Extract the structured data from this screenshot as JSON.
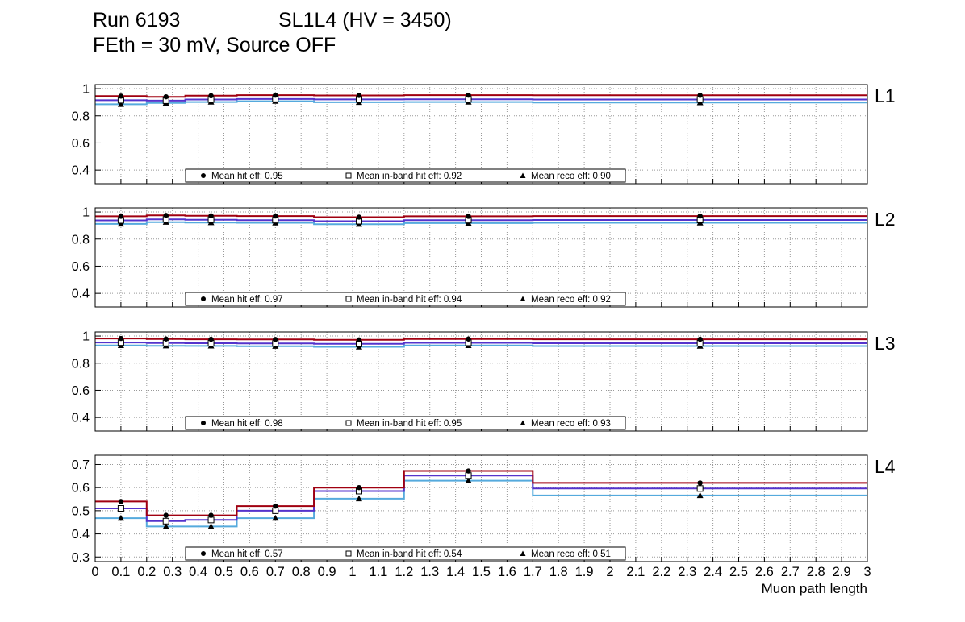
{
  "header": {
    "run": "Run 6193",
    "config": "SL1L4 (HV = 3450)",
    "subtitle": "FEth = 30 mV, Source OFF"
  },
  "chart_data": {
    "type": "line",
    "title": "Run 6193 SL1L4 (HV = 3450), FEth = 30 mV, Source OFF",
    "xlabel": "Muon path length",
    "xlim": [
      0,
      3
    ],
    "xticks": {
      "min": 0,
      "max": 3,
      "step": 0.1
    },
    "grid": "dotted",
    "bin_edges": [
      0,
      0.2,
      0.35,
      0.55,
      0.85,
      1.2,
      1.7,
      3.0
    ],
    "series_style": [
      {
        "key": "hit",
        "name": "hit eff",
        "marker": "filled-circle",
        "line_color": "#a00010",
        "marker_color": "#000000"
      },
      {
        "key": "inband",
        "name": "in-band hit eff",
        "marker": "open-square",
        "line_color": "#5533cc",
        "marker_color": "#000000"
      },
      {
        "key": "reco",
        "name": "reco eff",
        "marker": "filled-triangle",
        "line_color": "#55aadd",
        "marker_color": "#000000"
      }
    ],
    "panels": [
      {
        "label": "L1",
        "ylim": [
          0.3,
          1.03
        ],
        "yticks": [
          0.4,
          0.6,
          0.8,
          1
        ],
        "series": {
          "hit": [
            0.945,
            0.94,
            0.948,
            0.952,
            0.95,
            0.952,
            0.951
          ],
          "inband": [
            0.915,
            0.912,
            0.92,
            0.924,
            0.921,
            0.922,
            0.92
          ],
          "reco": [
            0.885,
            0.895,
            0.902,
            0.908,
            0.9,
            0.902,
            0.898
          ]
        },
        "means": {
          "hit": 0.95,
          "inband": 0.92,
          "reco": 0.9
        },
        "legend": [
          {
            "marker": "filled-circle",
            "text": "Mean hit  eff: 0.95"
          },
          {
            "marker": "open-square",
            "text": "Mean in-band hit eff: 0.92"
          },
          {
            "marker": "filled-triangle",
            "text": "Mean reco eff: 0.90"
          }
        ]
      },
      {
        "label": "L2",
        "ylim": [
          0.3,
          1.03
        ],
        "yticks": [
          0.4,
          0.6,
          0.8,
          1
        ],
        "series": {
          "hit": [
            0.968,
            0.975,
            0.972,
            0.97,
            0.962,
            0.968,
            0.97
          ],
          "inband": [
            0.938,
            0.945,
            0.943,
            0.94,
            0.932,
            0.94,
            0.941
          ],
          "reco": [
            0.912,
            0.925,
            0.922,
            0.92,
            0.91,
            0.918,
            0.92
          ]
        },
        "means": {
          "hit": 0.97,
          "inband": 0.94,
          "reco": 0.92
        },
        "legend": [
          {
            "marker": "filled-circle",
            "text": "Mean hit  eff: 0.97"
          },
          {
            "marker": "open-square",
            "text": "Mean in-band hit eff: 0.94"
          },
          {
            "marker": "filled-triangle",
            "text": "Mean reco eff: 0.92"
          }
        ]
      },
      {
        "label": "L3",
        "ylim": [
          0.3,
          1.03
        ],
        "yticks": [
          0.4,
          0.6,
          0.8,
          1
        ],
        "series": {
          "hit": [
            0.982,
            0.978,
            0.976,
            0.975,
            0.972,
            0.978,
            0.976
          ],
          "inband": [
            0.952,
            0.948,
            0.947,
            0.945,
            0.942,
            0.95,
            0.947
          ],
          "reco": [
            0.93,
            0.928,
            0.927,
            0.925,
            0.92,
            0.93,
            0.926
          ]
        },
        "means": {
          "hit": 0.98,
          "inband": 0.95,
          "reco": 0.93
        },
        "legend": [
          {
            "marker": "filled-circle",
            "text": "Mean hit  eff: 0.98"
          },
          {
            "marker": "open-square",
            "text": "Mean in-band hit eff: 0.95"
          },
          {
            "marker": "filled-triangle",
            "text": "Mean reco eff: 0.93"
          }
        ]
      },
      {
        "label": "L4",
        "ylim": [
          0.28,
          0.74
        ],
        "yticks": [
          0.3,
          0.4,
          0.5,
          0.6,
          0.7
        ],
        "series": {
          "hit": [
            0.54,
            0.48,
            0.48,
            0.52,
            0.6,
            0.672,
            0.62
          ],
          "inband": [
            0.51,
            0.455,
            0.46,
            0.5,
            0.585,
            0.652,
            0.596
          ],
          "reco": [
            0.468,
            0.432,
            0.432,
            0.468,
            0.552,
            0.63,
            0.566
          ]
        },
        "means": {
          "hit": 0.57,
          "inband": 0.54,
          "reco": 0.51
        },
        "legend": [
          {
            "marker": "filled-circle",
            "text": "Mean hit  eff: 0.57"
          },
          {
            "marker": "open-square",
            "text": "Mean in-band hit eff: 0.54"
          },
          {
            "marker": "filled-triangle",
            "text": "Mean reco eff: 0.51"
          }
        ]
      }
    ]
  }
}
